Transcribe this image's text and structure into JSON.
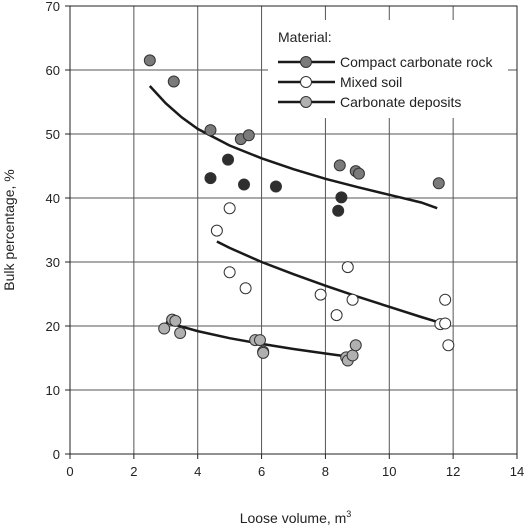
{
  "chart_data": {
    "type": "scatter",
    "xlabel": "Loose volume, m",
    "xlabel_sup": "3",
    "ylabel": "Bulk percentage, %",
    "xlim": [
      0,
      14
    ],
    "ylim": [
      0,
      70
    ],
    "x_ticks": [
      0,
      2,
      4,
      6,
      8,
      10,
      12,
      14
    ],
    "y_ticks": [
      0,
      10,
      20,
      30,
      40,
      50,
      60,
      70
    ],
    "grid": true,
    "legend": {
      "title": "Material:",
      "position": "top-right"
    },
    "series": [
      {
        "name": "Compact carbonate rock",
        "color": "#7a7a7a",
        "points": [
          {
            "x": 2.5,
            "y": 61.5
          },
          {
            "x": 3.25,
            "y": 58.2
          },
          {
            "x": 4.4,
            "y": 50.6
          },
          {
            "x": 5.35,
            "y": 49.2
          },
          {
            "x": 5.6,
            "y": 49.8
          },
          {
            "x": 8.45,
            "y": 45.1
          },
          {
            "x": 8.95,
            "y": 44.2
          },
          {
            "x": 9.05,
            "y": 43.8
          },
          {
            "x": 11.55,
            "y": 42.3
          }
        ],
        "trend": [
          {
            "x": 2.5,
            "y": 57.5
          },
          {
            "x": 3.0,
            "y": 54.8
          },
          {
            "x": 3.5,
            "y": 52.6
          },
          {
            "x": 4.0,
            "y": 50.8
          },
          {
            "x": 5.0,
            "y": 48.2
          },
          {
            "x": 6.0,
            "y": 46.2
          },
          {
            "x": 7.0,
            "y": 44.5
          },
          {
            "x": 8.0,
            "y": 43.0
          },
          {
            "x": 9.0,
            "y": 41.7
          },
          {
            "x": 10.0,
            "y": 40.5
          },
          {
            "x": 11.0,
            "y": 39.3
          },
          {
            "x": 11.5,
            "y": 38.4
          }
        ]
      },
      {
        "name": "Mixed soil",
        "color": "#ffffff",
        "points": [
          {
            "x": 4.6,
            "y": 34.9
          },
          {
            "x": 5.0,
            "y": 38.4
          },
          {
            "x": 5.0,
            "y": 28.4
          },
          {
            "x": 5.5,
            "y": 25.9
          },
          {
            "x": 7.85,
            "y": 24.9
          },
          {
            "x": 8.7,
            "y": 29.2
          },
          {
            "x": 8.85,
            "y": 24.1
          },
          {
            "x": 8.35,
            "y": 21.7
          },
          {
            "x": 11.6,
            "y": 20.3
          },
          {
            "x": 11.75,
            "y": 20.4
          },
          {
            "x": 11.75,
            "y": 24.1
          },
          {
            "x": 11.85,
            "y": 17.0
          }
        ],
        "trend": [
          {
            "x": 4.6,
            "y": 33.2
          },
          {
            "x": 5.0,
            "y": 32.2
          },
          {
            "x": 6.0,
            "y": 30.0
          },
          {
            "x": 7.0,
            "y": 28.1
          },
          {
            "x": 8.0,
            "y": 26.3
          },
          {
            "x": 9.0,
            "y": 24.6
          },
          {
            "x": 10.0,
            "y": 23.0
          },
          {
            "x": 11.0,
            "y": 21.4
          },
          {
            "x": 11.6,
            "y": 20.5
          }
        ]
      },
      {
        "name": "Carbonate deposits",
        "color": "#b0b0b0",
        "points": [
          {
            "x": 2.95,
            "y": 19.6
          },
          {
            "x": 3.2,
            "y": 21.0
          },
          {
            "x": 3.3,
            "y": 20.8
          },
          {
            "x": 3.45,
            "y": 18.9
          },
          {
            "x": 5.8,
            "y": 17.8
          },
          {
            "x": 5.95,
            "y": 17.8
          },
          {
            "x": 6.05,
            "y": 16.0
          },
          {
            "x": 6.05,
            "y": 15.8
          },
          {
            "x": 8.65,
            "y": 15.1
          },
          {
            "x": 8.7,
            "y": 14.6
          },
          {
            "x": 8.85,
            "y": 15.4
          },
          {
            "x": 8.95,
            "y": 17.0
          }
        ],
        "trend": [
          {
            "x": 3.0,
            "y": 20.6
          },
          {
            "x": 4.0,
            "y": 19.2
          },
          {
            "x": 5.0,
            "y": 18.1
          },
          {
            "x": 6.0,
            "y": 17.2
          },
          {
            "x": 7.0,
            "y": 16.4
          },
          {
            "x": 8.0,
            "y": 15.7
          },
          {
            "x": 8.6,
            "y": 15.3
          }
        ]
      },
      {
        "name": "",
        "color": "#2e2e2e",
        "points": [
          {
            "x": 4.4,
            "y": 43.1
          },
          {
            "x": 4.95,
            "y": 46.0
          },
          {
            "x": 5.45,
            "y": 42.1
          },
          {
            "x": 6.45,
            "y": 41.8
          },
          {
            "x": 8.4,
            "y": 38.0
          },
          {
            "x": 8.5,
            "y": 40.1
          }
        ]
      }
    ]
  }
}
